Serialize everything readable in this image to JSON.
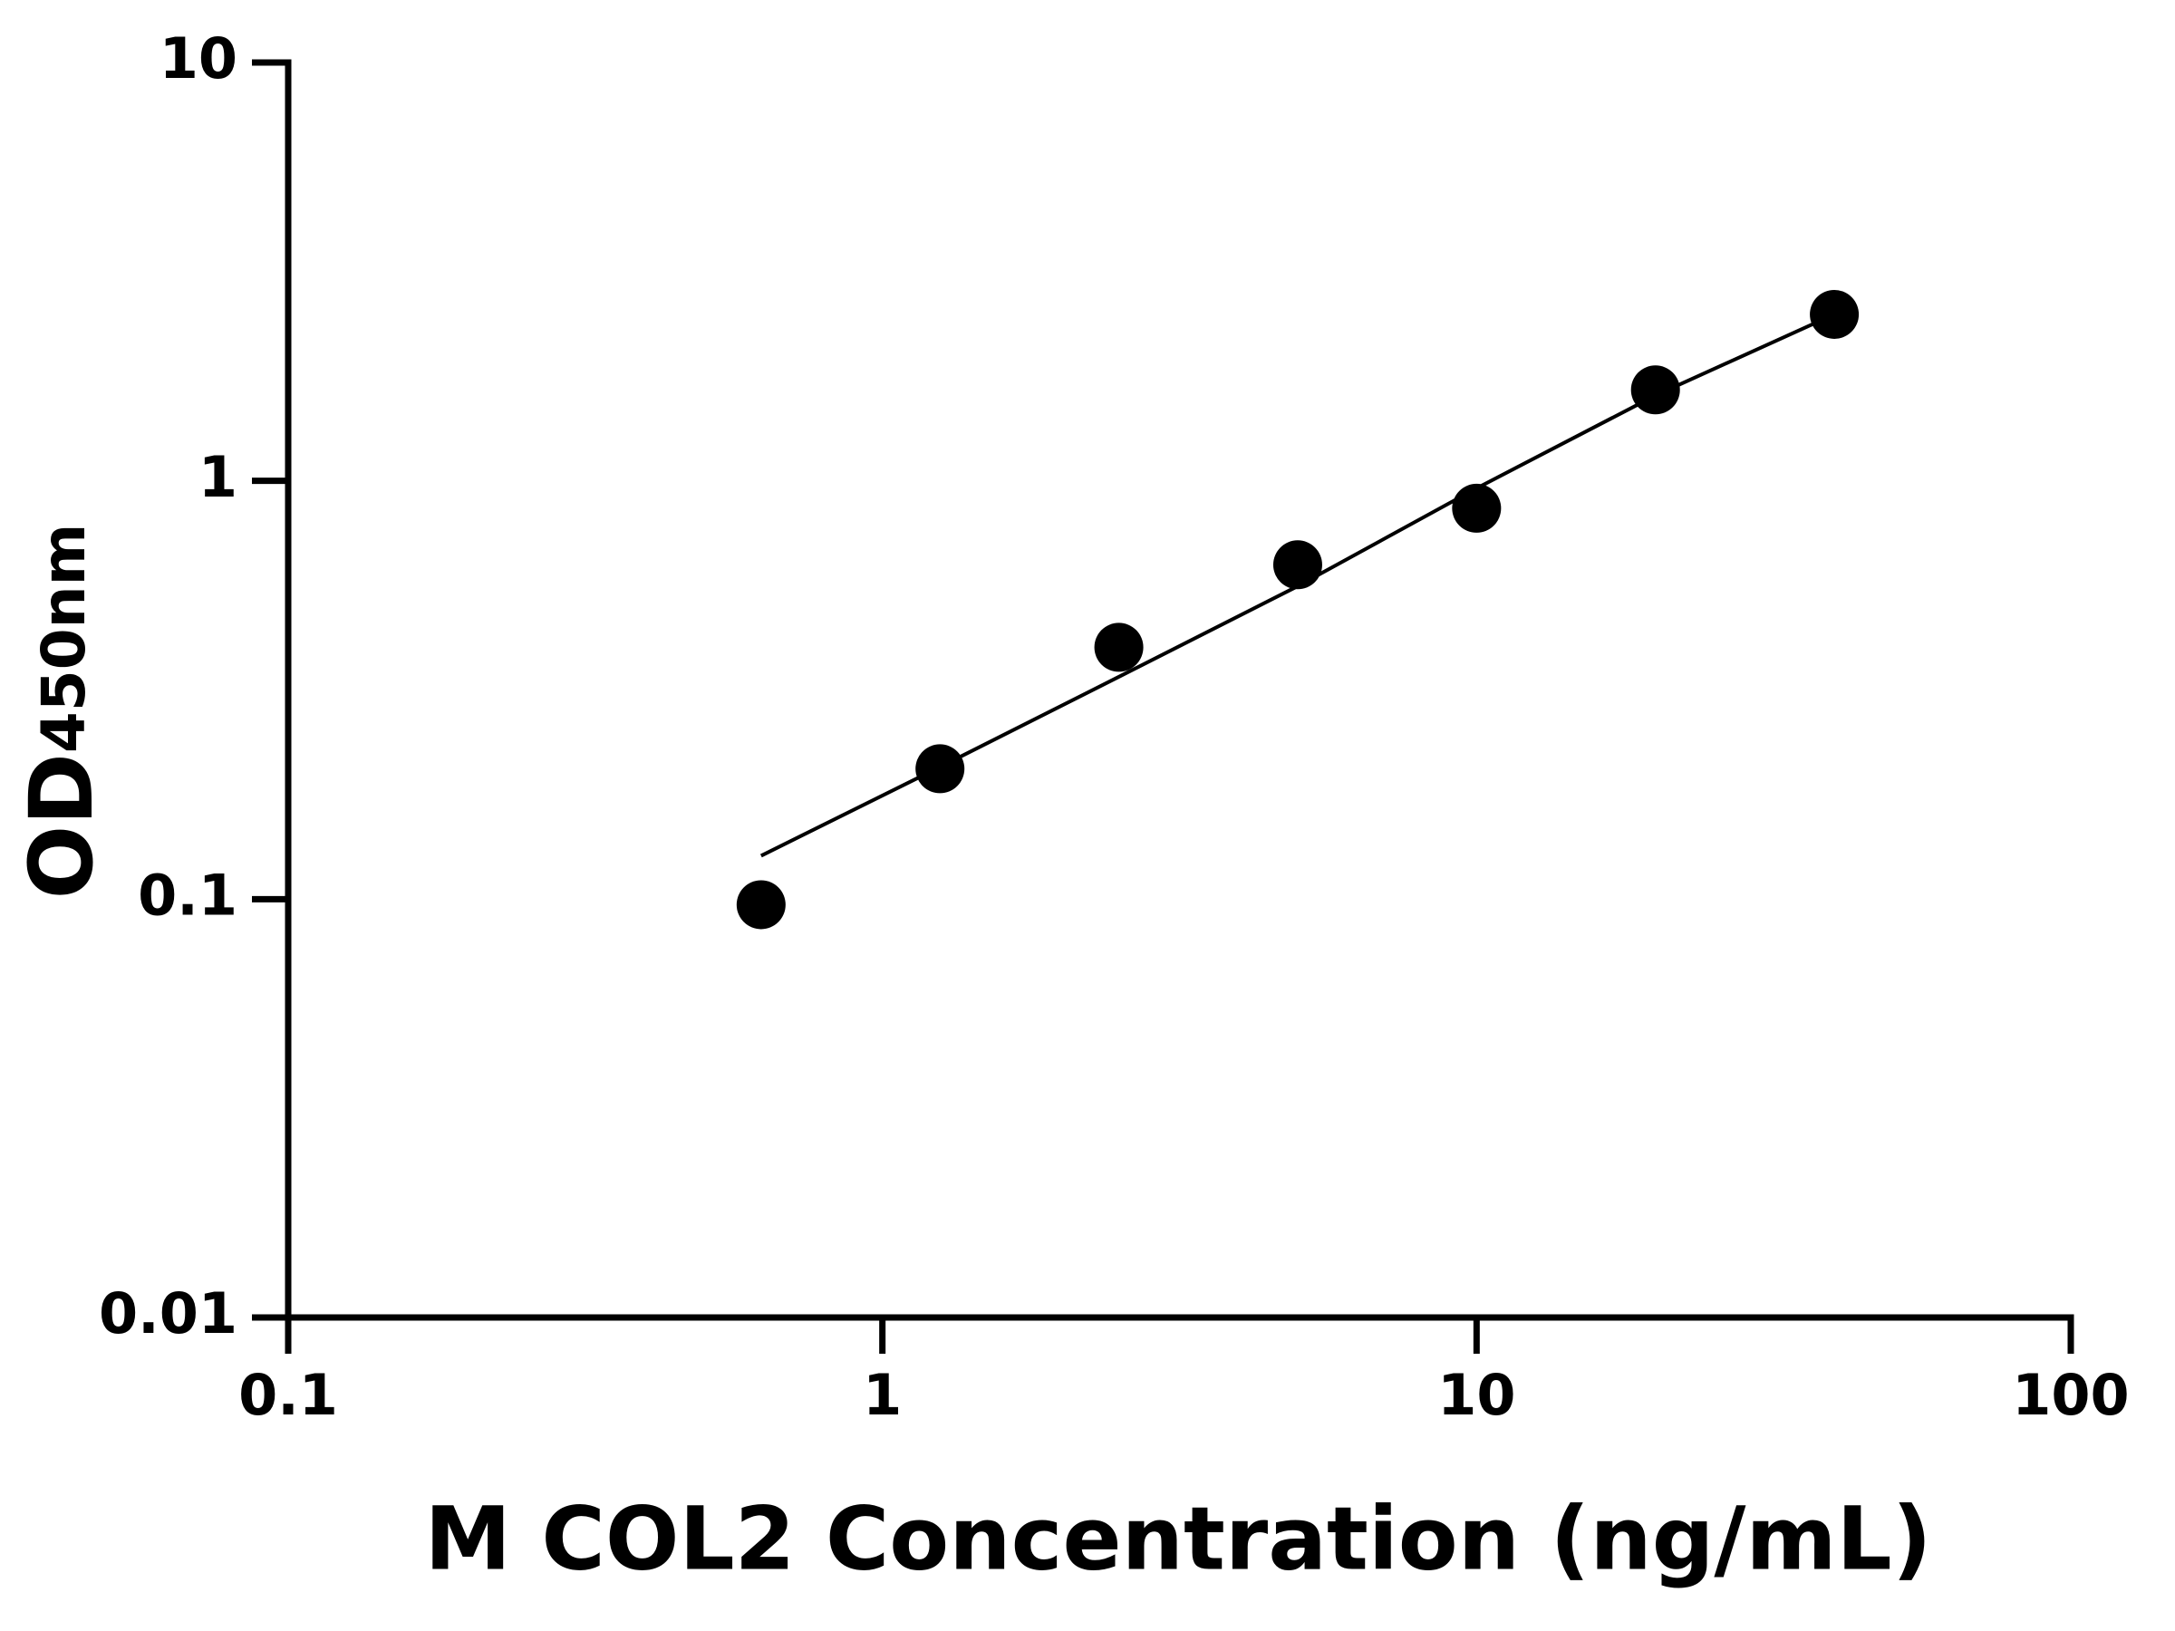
{
  "chart_data": {
    "type": "scatter",
    "x_label": "M COL2 Concentration (ng/mL)",
    "y_label": "OD",
    "y_label_sub": "450nm",
    "x_log": true,
    "y_log": true,
    "color": "#000000",
    "x": [
      0.625,
      1.25,
      2.5,
      5,
      10,
      20,
      40
    ],
    "values": [
      0.097,
      0.205,
      0.4,
      0.63,
      0.86,
      1.65,
      2.5
    ],
    "fit": {
      "x": [
        0.625,
        1.25,
        2.5,
        5,
        10,
        20,
        40
      ],
      "values": [
        0.127,
        0.207,
        0.34,
        0.56,
        0.96,
        1.6,
        2.5
      ]
    },
    "xlim": [
      0.1,
      100
    ],
    "ylim": [
      0.01,
      10
    ],
    "xticks": [
      0.1,
      1,
      10,
      100
    ],
    "yticks": [
      0.01,
      0.1,
      1,
      10
    ]
  }
}
